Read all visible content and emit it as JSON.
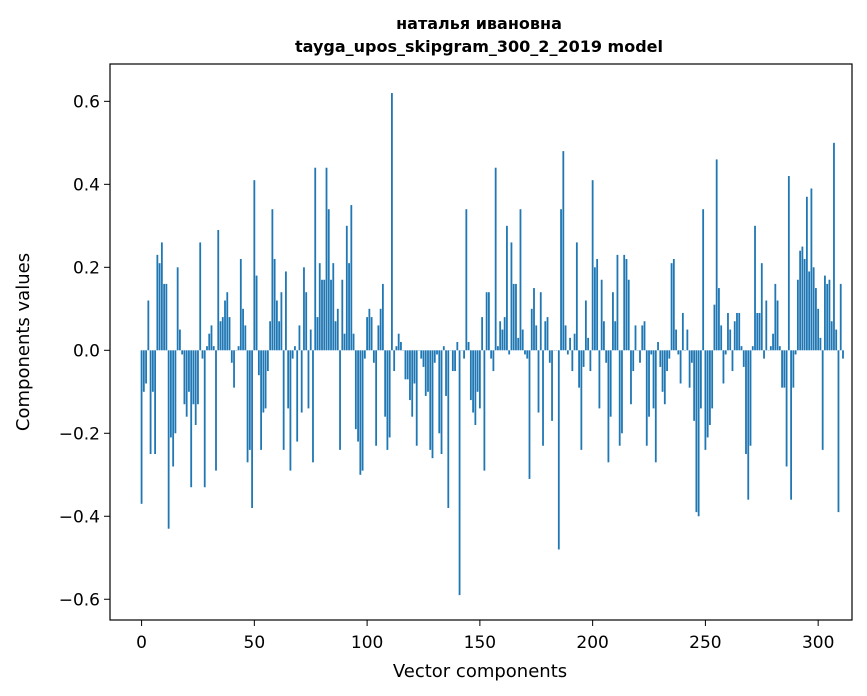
{
  "chart_data": {
    "type": "bar",
    "title": "наталья ивановна",
    "subtitle": "tayga_upos_skipgram_300_2_2019 model",
    "xlabel": "Vector components",
    "ylabel": "Components values",
    "xlim": [
      -14,
      315
    ],
    "ylim": [
      -0.65,
      0.69
    ],
    "xticks": [
      0,
      50,
      100,
      150,
      200,
      250,
      300
    ],
    "yticks": [
      -0.6,
      -0.4,
      -0.2,
      0.0,
      0.2,
      0.4,
      0.6
    ],
    "ytick_labels": [
      "−0.6",
      "−0.4",
      "−0.2",
      "0.0",
      "0.2",
      "0.4",
      "0.6"
    ],
    "grid": false,
    "legend": "none",
    "bar_color": "#1f77b4",
    "values": [
      -0.37,
      -0.1,
      -0.08,
      0.12,
      -0.25,
      -0.1,
      -0.25,
      0.23,
      0.21,
      0.26,
      0.16,
      0.16,
      -0.43,
      -0.21,
      -0.28,
      -0.2,
      0.2,
      0.05,
      -0.01,
      -0.13,
      -0.16,
      -0.1,
      -0.33,
      -0.13,
      -0.18,
      -0.13,
      0.26,
      -0.02,
      -0.33,
      0.01,
      0.04,
      0.06,
      0.01,
      -0.29,
      0.29,
      0.07,
      0.08,
      0.12,
      0.14,
      0.08,
      -0.03,
      -0.09,
      0.0,
      0.01,
      0.22,
      0.1,
      0.06,
      -0.27,
      -0.24,
      -0.38,
      0.41,
      0.18,
      -0.06,
      -0.24,
      -0.15,
      -0.14,
      -0.05,
      0.07,
      0.34,
      0.22,
      0.12,
      0.07,
      0.14,
      -0.24,
      0.19,
      -0.14,
      -0.29,
      -0.02,
      0.01,
      -0.22,
      0.06,
      -0.15,
      0.2,
      0.14,
      -0.14,
      0.05,
      -0.27,
      0.44,
      0.08,
      0.21,
      0.17,
      0.17,
      0.44,
      0.34,
      0.17,
      0.21,
      0.07,
      0.1,
      -0.24,
      0.17,
      0.04,
      0.3,
      0.21,
      0.35,
      0.04,
      -0.19,
      -0.22,
      -0.3,
      -0.29,
      -0.02,
      0.08,
      0.1,
      0.08,
      -0.03,
      -0.23,
      0.06,
      0.1,
      0.16,
      -0.16,
      -0.24,
      -0.21,
      0.62,
      -0.05,
      0.01,
      0.04,
      0.02,
      0.0,
      -0.07,
      -0.07,
      -0.12,
      -0.16,
      -0.08,
      -0.23,
      0.0,
      -0.02,
      -0.04,
      -0.11,
      -0.1,
      -0.24,
      -0.26,
      -0.03,
      -0.01,
      -0.2,
      -0.25,
      0.01,
      -0.11,
      -0.38,
      0.0,
      -0.05,
      -0.05,
      0.02,
      -0.59,
      0.0,
      -0.02,
      0.34,
      0.02,
      -0.12,
      -0.15,
      -0.18,
      -0.1,
      -0.14,
      0.08,
      -0.29,
      0.14,
      0.14,
      -0.02,
      -0.05,
      0.44,
      0.01,
      0.07,
      0.05,
      0.08,
      0.3,
      -0.01,
      0.26,
      0.16,
      0.16,
      0.03,
      0.34,
      0.05,
      -0.01,
      -0.02,
      -0.31,
      0.1,
      0.15,
      0.06,
      -0.15,
      0.14,
      -0.23,
      0.07,
      0.08,
      -0.03,
      -0.17,
      0.0,
      0.0,
      -0.48,
      0.34,
      0.48,
      0.06,
      -0.01,
      0.03,
      -0.05,
      0.04,
      0.26,
      -0.09,
      -0.24,
      -0.04,
      0.12,
      0.03,
      -0.05,
      0.41,
      0.2,
      0.22,
      -0.14,
      0.17,
      0.07,
      -0.03,
      -0.27,
      -0.16,
      0.14,
      0.07,
      0.23,
      -0.23,
      -0.2,
      0.23,
      0.22,
      0.17,
      -0.13,
      -0.05,
      0.06,
      0.0,
      -0.03,
      0.06,
      0.07,
      -0.23,
      -0.16,
      -0.01,
      -0.14,
      -0.27,
      0.02,
      -0.04,
      -0.1,
      -0.13,
      -0.05,
      -0.02,
      0.21,
      0.22,
      0.05,
      -0.01,
      -0.08,
      0.09,
      0.0,
      0.05,
      -0.09,
      -0.03,
      -0.17,
      -0.39,
      -0.4,
      -0.14,
      0.34,
      -0.24,
      -0.21,
      -0.18,
      -0.14,
      0.11,
      0.46,
      0.15,
      0.06,
      -0.08,
      -0.01,
      0.09,
      0.05,
      -0.05,
      0.07,
      0.09,
      0.09,
      0.01,
      -0.04,
      -0.25,
      -0.36,
      -0.23,
      0.01,
      0.3,
      0.09,
      0.09,
      0.21,
      -0.02,
      0.12,
      0.0,
      0.01,
      0.04,
      0.16,
      0.12,
      0.01,
      -0.09,
      -0.09,
      -0.28,
      0.42,
      -0.36,
      -0.09,
      -0.01,
      0.17,
      0.24,
      0.25,
      0.22,
      0.37,
      0.19,
      0.39,
      0.2,
      0.15,
      0.1,
      0.03,
      -0.24,
      0.18,
      0.16,
      0.17,
      0.07,
      0.5,
      0.05,
      -0.39,
      0.16,
      -0.02
    ]
  }
}
